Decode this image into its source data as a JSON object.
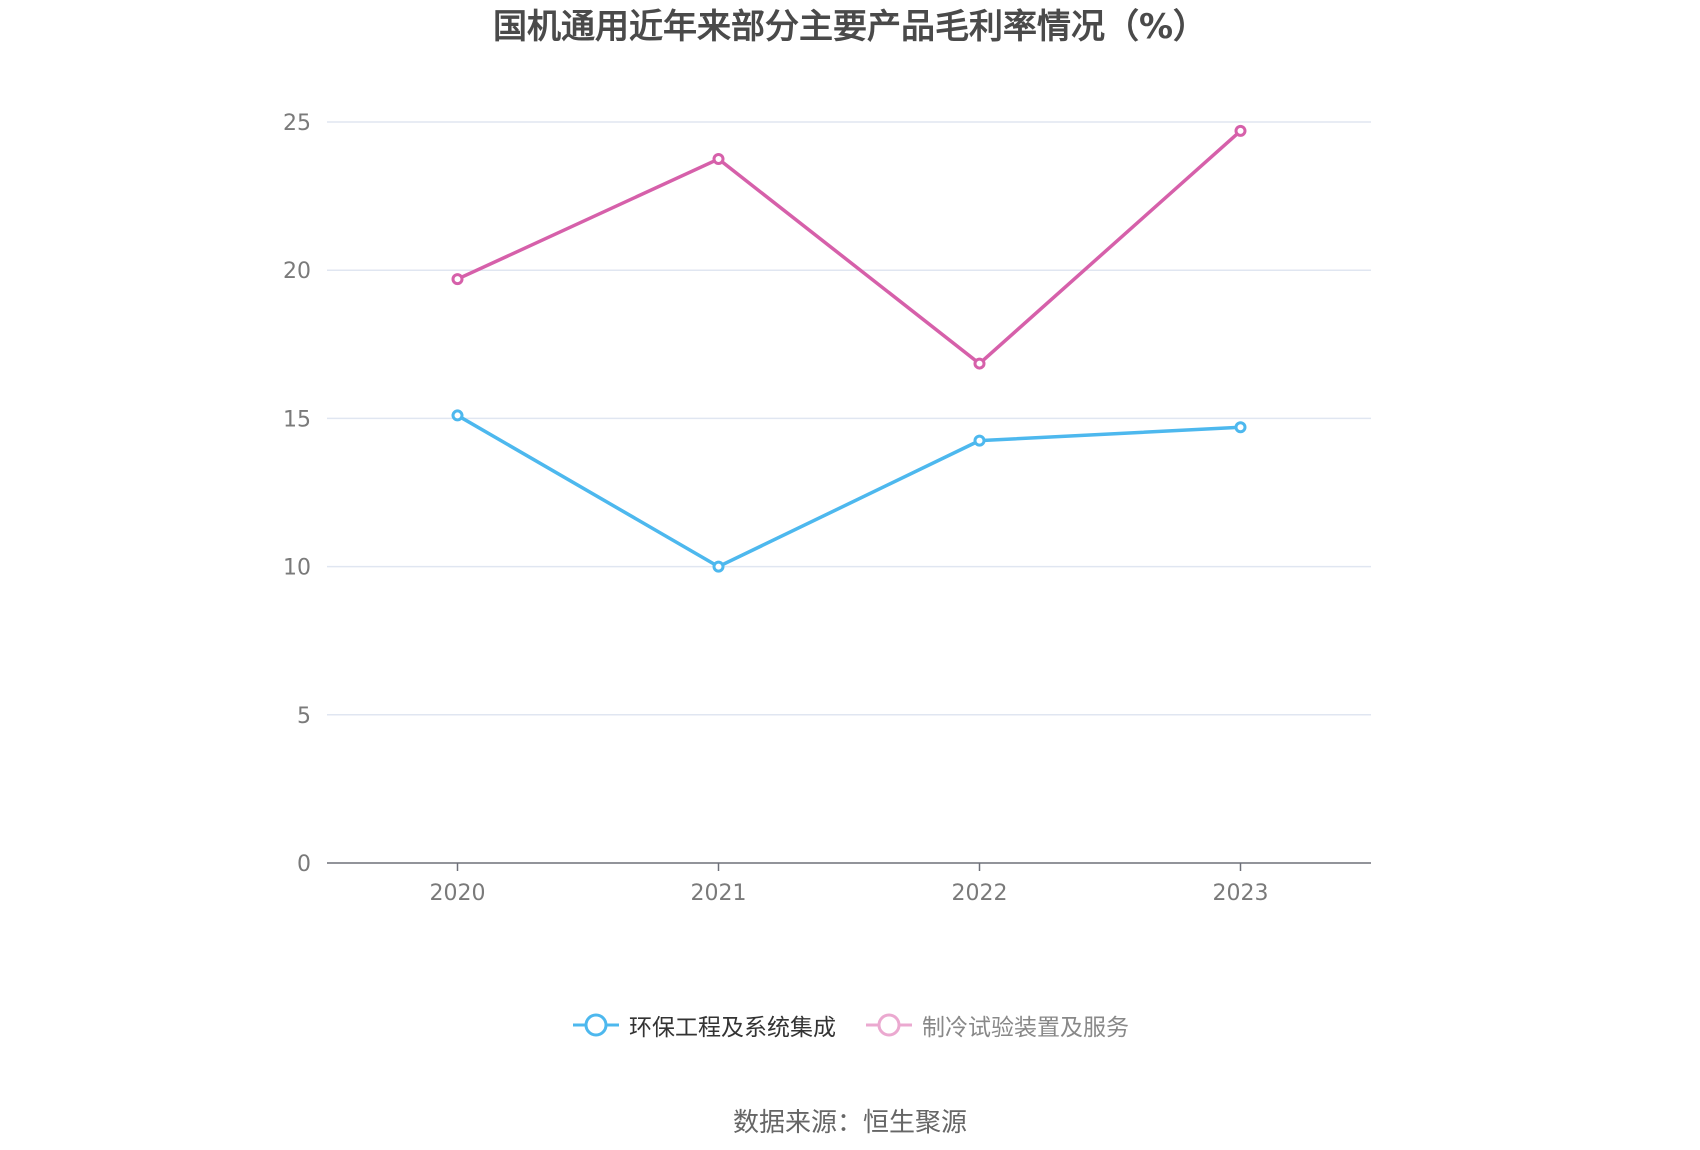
{
  "chart_data": {
    "type": "line",
    "title": "国机通用近年来部分主要产品毛利率情况（%）",
    "categories": [
      "2020",
      "2021",
      "2022",
      "2023"
    ],
    "yticks": [
      "0",
      "5",
      "10",
      "15",
      "20",
      "25"
    ],
    "ylim": [
      0,
      25
    ],
    "grid": true,
    "legend_position": "bottom",
    "series": [
      {
        "name": "环保工程及系统集成",
        "color": "#4db8ee",
        "values": [
          15.1,
          10.0,
          14.25,
          14.7
        ]
      },
      {
        "name": "制冷试验装置及服务",
        "color": "#d660aa",
        "legend_color": "#eba9d0",
        "values": [
          19.7,
          23.75,
          16.85,
          24.7
        ]
      }
    ]
  },
  "source": "数据来源：恒生聚源"
}
